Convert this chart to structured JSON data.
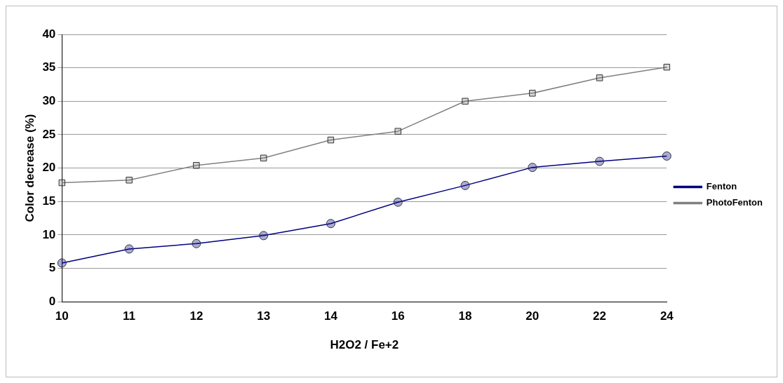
{
  "chart_data": {
    "type": "line",
    "xlabel": "H2O2 / Fe+2",
    "ylabel": "Color decrease (%)",
    "categories": [
      "10",
      "11",
      "12",
      "13",
      "14",
      "16",
      "18",
      "20",
      "22",
      "24"
    ],
    "series": [
      {
        "name": "Fenton",
        "color": "#000080",
        "marker": "circle",
        "values": [
          5.8,
          7.9,
          8.7,
          9.9,
          11.7,
          14.9,
          17.4,
          20.1,
          21.0,
          21.8
        ]
      },
      {
        "name": "PhotoFenton",
        "color": "#808080",
        "marker": "square",
        "values": [
          17.8,
          18.2,
          20.4,
          21.5,
          24.2,
          25.5,
          30.0,
          31.2,
          33.5,
          35.1
        ]
      }
    ],
    "ylim": [
      0,
      40
    ],
    "yticks": [
      0,
      5,
      10,
      15,
      20,
      25,
      30,
      35,
      40
    ],
    "grid": "y",
    "legend": "right"
  }
}
